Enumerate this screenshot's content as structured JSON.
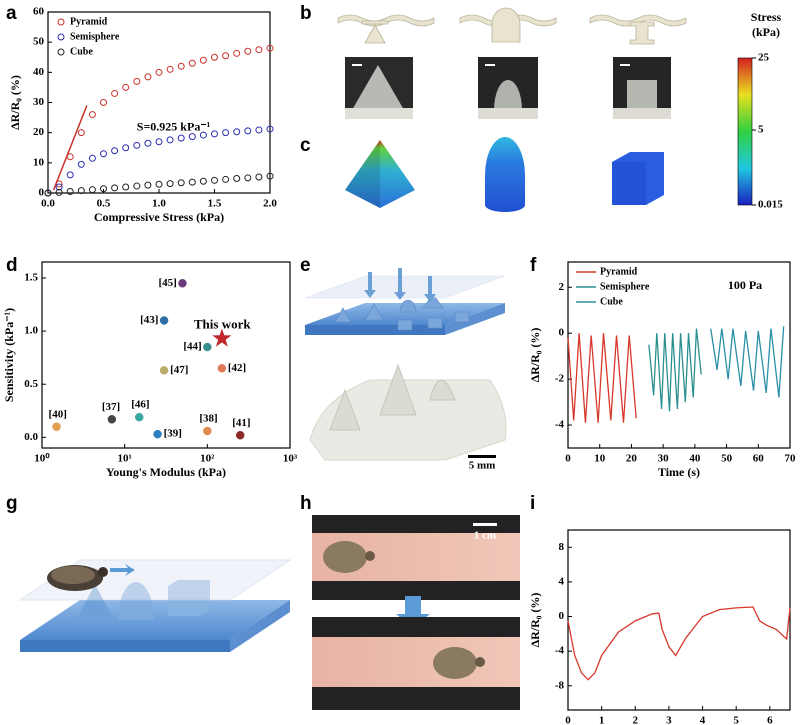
{
  "figure": {
    "panel_labels": [
      "a",
      "b",
      "c",
      "d",
      "e",
      "f",
      "g",
      "h",
      "i"
    ],
    "colorbar": {
      "title": "Stress",
      "unit": "(kPa)",
      "ticks": [
        25,
        5,
        0.015
      ]
    },
    "scale_bars": [
      "5 mm",
      "1 cm"
    ]
  },
  "chart_data": [
    {
      "type": "scatter",
      "x_label": "Compressive Stress (kPa)",
      "y_label": "ΔR/R₀ (%)",
      "x": [
        0,
        0.1,
        0.2,
        0.3,
        0.4,
        0.5,
        0.6,
        0.7,
        0.8,
        0.9,
        1.0,
        1.1,
        1.2,
        1.3,
        1.4,
        1.5,
        1.6,
        1.7,
        1.8,
        1.9,
        2.0
      ],
      "series": [
        {
          "name": "Pyramid",
          "color": "#c8312a",
          "marker": "open circle",
          "values": [
            0,
            3,
            12,
            20,
            26,
            30,
            33,
            35,
            37,
            38.5,
            40,
            41,
            42,
            43,
            44,
            45,
            45.5,
            46.3,
            47,
            47.5,
            48
          ]
        },
        {
          "name": "Semisphere",
          "color": "#2a2fb0",
          "marker": "open circle",
          "values": [
            0,
            2,
            6,
            9.5,
            11.5,
            13,
            14,
            15,
            15.8,
            16.5,
            17,
            17.6,
            18.2,
            18.7,
            19.2,
            19.6,
            20,
            20.3,
            20.6,
            20.9,
            21.2
          ]
        },
        {
          "name": "Cube",
          "color": "#222222",
          "marker": "open circle",
          "values": [
            0,
            0.2,
            0.5,
            0.8,
            1.1,
            1.4,
            1.7,
            2,
            2.3,
            2.6,
            2.9,
            3.1,
            3.4,
            3.6,
            3.9,
            4.2,
            4.5,
            4.8,
            5,
            5.3,
            5.6
          ]
        }
      ],
      "fit_line": {
        "color": "#c8312a",
        "x": [
          0.05,
          0.35
        ],
        "values": [
          1,
          29
        ]
      },
      "annotation": "S=0.925 kPa⁻¹",
      "xlim": [
        0,
        2
      ],
      "xticks": [
        {
          "value": 0,
          "label": "0.0"
        },
        0.5,
        {
          "value": 1,
          "label": "1.0"
        },
        1.5,
        {
          "value": 2,
          "label": "2.0"
        }
      ],
      "ylim": [
        0,
        60
      ],
      "yticks": [
        0,
        10,
        20,
        30,
        40,
        50,
        60
      ],
      "legend": "upper left"
    },
    {
      "type": "scatter",
      "x_label": "Young's Modulus (kPa)",
      "y_label": "Sensitivity (kPa⁻¹)",
      "xscale": "log",
      "series": [
        {
          "name": "[45]",
          "color": "#6a3d7a",
          "marker": "sphere",
          "x": [
            50
          ],
          "values": [
            1.45
          ]
        },
        {
          "name": "[43]",
          "color": "#2f6ea5",
          "marker": "sphere",
          "x": [
            30
          ],
          "values": [
            1.1
          ]
        },
        {
          "name": "This work",
          "color": "#c0282d",
          "marker": "star",
          "x": [
            150
          ],
          "values": [
            0.93
          ]
        },
        {
          "name": "[44]",
          "color": "#3b8f8f",
          "marker": "sphere",
          "x": [
            100
          ],
          "values": [
            0.85
          ]
        },
        {
          "name": "[47]",
          "color": "#b8ac6a",
          "marker": "sphere",
          "x": [
            30
          ],
          "values": [
            0.63
          ]
        },
        {
          "name": "[42]",
          "color": "#e07a5a",
          "marker": "sphere",
          "x": [
            150
          ],
          "values": [
            0.65
          ]
        },
        {
          "name": "[40]",
          "color": "#e0a050",
          "marker": "sphere",
          "x": [
            1.5
          ],
          "values": [
            0.1
          ]
        },
        {
          "name": "[37]",
          "color": "#444444",
          "marker": "sphere",
          "x": [
            7
          ],
          "values": [
            0.17
          ]
        },
        {
          "name": "[46]",
          "color": "#3aa7a0",
          "marker": "sphere",
          "x": [
            15
          ],
          "values": [
            0.19
          ]
        },
        {
          "name": "[39]",
          "color": "#2a7fc0",
          "marker": "sphere",
          "x": [
            25
          ],
          "values": [
            0.03
          ]
        },
        {
          "name": "[38]",
          "color": "#e08a50",
          "marker": "sphere",
          "x": [
            100
          ],
          "values": [
            0.06
          ]
        },
        {
          "name": "[41]",
          "color": "#8b2a2a",
          "marker": "sphere",
          "x": [
            250
          ],
          "values": [
            0.02
          ]
        }
      ],
      "xlim": [
        1,
        1000
      ],
      "xticks": [
        {
          "value": 1,
          "label": "10⁰"
        },
        {
          "value": 10,
          "label": "10¹"
        },
        {
          "value": 100,
          "label": "10²"
        },
        {
          "value": 1000,
          "label": "10³"
        }
      ],
      "ylim": [
        -0.1,
        1.65
      ],
      "yticks": [
        {
          "value": 0,
          "label": "0.0"
        },
        0.5,
        {
          "value": 1,
          "label": "1.0"
        },
        1.5
      ],
      "legend": "none"
    },
    {
      "type": "line",
      "x_label": "Time (s)",
      "y_label": "ΔR/R₀ (%)",
      "series": [
        {
          "name": "Pyramid",
          "color": "#d7382b",
          "x": [
            0,
            1.8,
            3.5,
            5.5,
            7.3,
            9.5,
            11.2,
            13.5,
            15.3,
            17.5,
            19.3,
            21.5
          ],
          "values": [
            -0.2,
            -3.8,
            0,
            -3.9,
            -0.1,
            -3.9,
            0,
            -3.8,
            -0.1,
            -3.9,
            -0.1,
            -3.7
          ]
        },
        {
          "name": "Semisphere",
          "color": "#2a8f8f",
          "x": [
            25.5,
            27,
            28,
            29.5,
            30.5,
            32,
            33,
            34.5,
            35.5,
            37,
            38,
            39.5,
            40.5,
            42
          ],
          "values": [
            -0.5,
            -2.7,
            0,
            -3.3,
            0,
            -3.4,
            0,
            -3.3,
            0,
            -3,
            0,
            -2.8,
            0.2,
            -1.8
          ]
        },
        {
          "name": "Cube",
          "color": "#2b8fa8",
          "x": [
            45,
            47,
            48.5,
            50.5,
            52,
            54.5,
            56,
            58.5,
            60,
            62.5,
            64,
            66.5,
            68
          ],
          "values": [
            0.2,
            -1.6,
            0.2,
            -2,
            0.2,
            -2.3,
            0.1,
            -2.5,
            0.1,
            -2.6,
            0.2,
            -2.8,
            0.3
          ]
        }
      ],
      "annotation": "100 Pa",
      "xlim": [
        0,
        70
      ],
      "xticks": [
        0,
        10,
        20,
        30,
        40,
        50,
        60,
        70
      ],
      "ylim": [
        -5,
        3.1
      ],
      "yticks": [
        -4,
        -2,
        0,
        2
      ],
      "legend": "upper left"
    },
    {
      "type": "line",
      "x_label": "Time (s)",
      "y_label": "ΔR/R₀ (%)",
      "color": "#d7382b",
      "x": [
        0,
        0.2,
        0.4,
        0.6,
        0.8,
        1.0,
        1.5,
        2.0,
        2.5,
        2.7,
        2.8,
        3.0,
        3.2,
        3.5,
        4.0,
        4.5,
        5.0,
        5.5,
        5.7,
        5.9,
        6.2,
        6.5,
        6.6
      ],
      "values": [
        -0.5,
        -4.5,
        -6.5,
        -7.3,
        -6.5,
        -4.5,
        -1.8,
        -0.5,
        0.3,
        0.4,
        -1.5,
        -3.5,
        -4.5,
        -2.5,
        0,
        0.8,
        1.0,
        1.1,
        -0.5,
        -1.0,
        -1.5,
        -2.6,
        1.0
      ],
      "xlim": [
        0,
        6.6
      ],
      "xticks": [
        0,
        1,
        2,
        3,
        4,
        5,
        6
      ],
      "ylim": [
        -10.8,
        10
      ],
      "yticks": [
        -8,
        -4,
        0,
        4,
        8
      ]
    }
  ]
}
